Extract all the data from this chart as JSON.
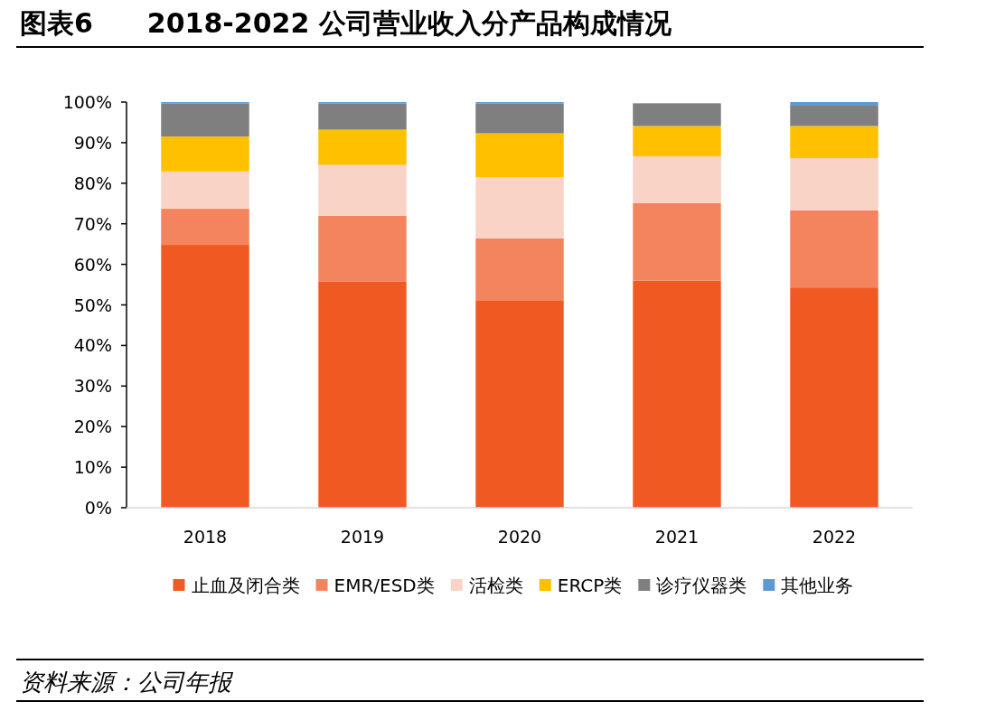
{
  "chart_data": {
    "type": "bar",
    "stacked": true,
    "title": "图表6　　2018-2022 公司营业收入分产品构成情况",
    "categories": [
      "2018",
      "2019",
      "2020",
      "2021",
      "2022"
    ],
    "series": [
      {
        "name": "止血及闭合类",
        "color": "#f05a22",
        "values": [
          64.8,
          55.7,
          51.0,
          56.0,
          54.3
        ]
      },
      {
        "name": "EMR/ESD类",
        "color": "#f3845e",
        "values": [
          8.9,
          16.3,
          15.4,
          19.1,
          19.0
        ]
      },
      {
        "name": "活检类",
        "color": "#fad3c7",
        "values": [
          9.2,
          12.5,
          15.1,
          11.5,
          12.9
        ]
      },
      {
        "name": "ERCP类",
        "color": "#ffc000",
        "values": [
          8.6,
          8.7,
          10.8,
          7.5,
          7.9
        ]
      },
      {
        "name": "诊疗仪器类",
        "color": "#7f7f7f",
        "values": [
          8.2,
          6.5,
          7.4,
          5.6,
          5.2
        ]
      },
      {
        "name": "其他业务",
        "color": "#5b9bd5",
        "values": [
          0.3,
          0.3,
          0.3,
          0,
          0.7
        ]
      }
    ],
    "ylim": [
      0,
      100
    ],
    "yticks": [
      {
        "value": 0,
        "label": "0%"
      },
      {
        "value": 10,
        "label": "10%"
      },
      {
        "value": 20,
        "label": "20%"
      },
      {
        "value": 30,
        "label": "30%"
      },
      {
        "value": 40,
        "label": "40%"
      },
      {
        "value": 50,
        "label": "50%"
      },
      {
        "value": 60,
        "label": "60%"
      },
      {
        "value": 70,
        "label": "70%"
      },
      {
        "value": 80,
        "label": "80%"
      },
      {
        "value": 90,
        "label": "90%"
      },
      {
        "value": 100,
        "label": "100%"
      }
    ],
    "legend": "bottom",
    "annotations": [
      "资料来源：公司年报"
    ]
  }
}
